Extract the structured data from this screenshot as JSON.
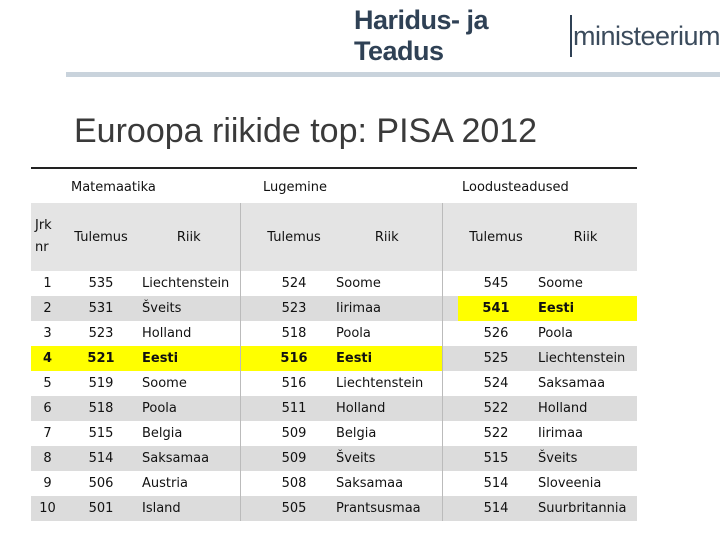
{
  "header": {
    "logo_bold": "Haridus- ja Teadus",
    "logo_light": "ministeerium"
  },
  "title": "Euroopa riikide top: PISA 2012",
  "groups": {
    "math": "Matemaatika",
    "reading": "Lugemine",
    "science": "Loodusteadused"
  },
  "columns": {
    "rank_line1": "Jrk",
    "rank_line2": "nr",
    "score": "Tulemus",
    "country": "Riik"
  },
  "rows": [
    {
      "rank": "1",
      "m_score": "535",
      "m_country": "Liechtenstein",
      "r_score": "524",
      "r_country": "Soome",
      "s_score": "545",
      "s_country": "Soome"
    },
    {
      "rank": "2",
      "m_score": "531",
      "m_country": "Šveits",
      "r_score": "523",
      "r_country": "Iirimaa",
      "s_score": "541",
      "s_country": "Eesti"
    },
    {
      "rank": "3",
      "m_score": "523",
      "m_country": "Holland",
      "r_score": "518",
      "r_country": "Poola",
      "s_score": "526",
      "s_country": "Poola"
    },
    {
      "rank": "4",
      "m_score": "521",
      "m_country": "Eesti",
      "r_score": "516",
      "r_country": "Eesti",
      "s_score": "525",
      "s_country": "Liechtenstein"
    },
    {
      "rank": "5",
      "m_score": "519",
      "m_country": "Soome",
      "r_score": "516",
      "r_country": "Liechtenstein",
      "s_score": "524",
      "s_country": "Saksamaa"
    },
    {
      "rank": "6",
      "m_score": "518",
      "m_country": "Poola",
      "r_score": "511",
      "r_country": "Holland",
      "s_score": "522",
      "s_country": "Holland"
    },
    {
      "rank": "7",
      "m_score": "515",
      "m_country": "Belgia",
      "r_score": "509",
      "r_country": "Belgia",
      "s_score": "522",
      "s_country": "Iirimaa"
    },
    {
      "rank": "8",
      "m_score": "514",
      "m_country": "Saksamaa",
      "r_score": "509",
      "r_country": "Šveits",
      "s_score": "515",
      "s_country": "Šveits"
    },
    {
      "rank": "9",
      "m_score": "506",
      "m_country": "Austria",
      "r_score": "508",
      "r_country": "Saksamaa",
      "s_score": "514",
      "s_country": "Sloveenia"
    },
    {
      "rank": "10",
      "m_score": "501",
      "m_country": "Island",
      "r_score": "505",
      "r_country": "Prantsusmaa",
      "s_score": "514",
      "s_country": "Suurbritannia"
    }
  ],
  "colors": {
    "highlight": "#ffff00",
    "band": "#dcdcdc",
    "header_bg": "#e4e4e4"
  }
}
